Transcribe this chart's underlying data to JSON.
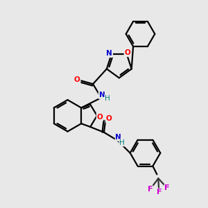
{
  "bg": "#e8e8e8",
  "atom_colors": {
    "O": "#ff0000",
    "N": "#0000cc",
    "F": "#cc00cc",
    "H_teal": "#008080",
    "C": "#000000"
  },
  "lw": 1.6,
  "fs": 7.5
}
